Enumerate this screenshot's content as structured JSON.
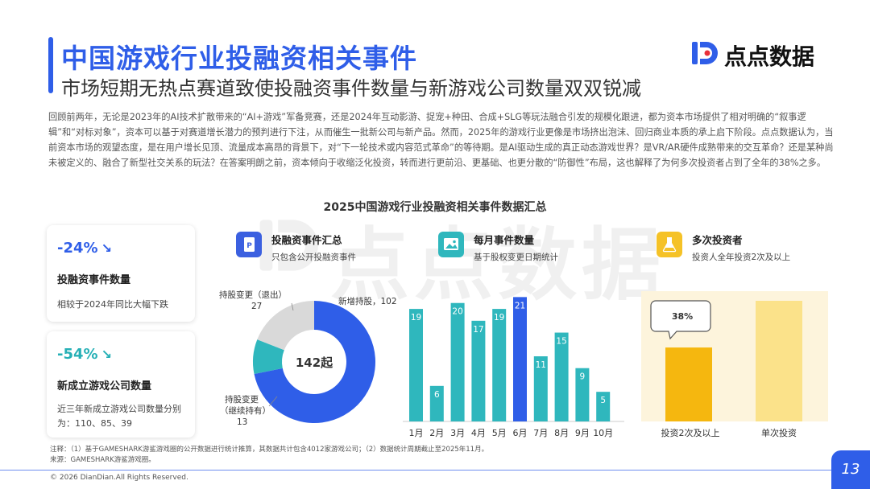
{
  "header": {
    "title": "中国游戏行业投融资相关事件",
    "subtitle": "市场短期无热点赛道致使投融资事件数量与新游戏公司数量双双锐减",
    "logo_text": "点点数据",
    "accent": "#2f5ee8"
  },
  "intro": "回顾前两年，无论是2023年的AI技术扩散带来的“AI+游戏”军备竞赛，还是2024年互动影游、捉宠+种田、合成+SLG等玩法融合引发的规模化跟进，都为资本市场提供了相对明确的“叙事逻辑”和“对标对象”，资本可以基于对赛道增长潜力的预判进行下注，从而催生一批新公司与新产品。然而，2025年的游戏行业更像是市场挤出泡沫、回归商业本质的承上启下阶段。点点数据认为，当前资本市场的观望态度，是在用户增长见顶、流量成本高昂的背景下，对“下一轮技术或内容范式革命”的等待期。是AI驱动生成的真正动态游戏世界？是VR/AR硬件成熟带来的交互革命？还是某种尚未被定义的、融合了新型社交关系的玩法？在答案明朗之前，资本倾向于收缩泛化投资，转而进行更前沿、更基础、也更分散的“防御性”布局，这也解释了为何多次投资者占到了全年的38%之多。",
  "watermark": "点点数据",
  "section_title": "2025中国游戏行业投融资相关事件数据汇总",
  "stats": [
    {
      "value": "-24%",
      "arrow": "↘",
      "label": "投融资事件数量",
      "desc": "相较于2024年同比大幅下跌"
    },
    {
      "value": "-54%",
      "arrow": "↘",
      "label": "新成立游戏公司数量",
      "desc": "近三年新成立游戏公司数量分别为：110、85、39"
    }
  ],
  "panels": [
    {
      "title": "投融资事件汇总",
      "sub": "只包含公开投融资事件",
      "icon": "document-icon"
    },
    {
      "title": "每月事件数量",
      "sub": "基于股权变更日期统计",
      "icon": "image-icon"
    },
    {
      "title": "多次投资者",
      "sub": "投资人全年投资2次及以上",
      "icon": "flask-icon"
    }
  ],
  "chart_data": [
    {
      "type": "pie",
      "center_label": "142起",
      "slices": [
        {
          "name": "新增持股",
          "value": 102,
          "label": "新增持股，102",
          "color": "#2f5ee8"
        },
        {
          "name": "持股变更（继续持有）",
          "value": 13,
          "label_lines": [
            "持股变更",
            "（继续持有）",
            "13"
          ],
          "color": "#2fb7bd"
        },
        {
          "name": "持股变更（退出）",
          "value": 27,
          "label_lines": [
            "持股变更（退出）",
            "27"
          ],
          "color": "#d9d9d9"
        }
      ]
    },
    {
      "type": "bar",
      "categories": [
        "1月",
        "2月",
        "3月",
        "4月",
        "5月",
        "6月",
        "7月",
        "8月",
        "9月",
        "10月"
      ],
      "values": [
        19,
        6,
        20,
        17,
        19,
        21,
        11,
        15,
        9,
        5
      ],
      "highlight_index": 5,
      "color": "#2fb7bd",
      "highlight_color": "#2f5ee8",
      "ylim": [
        0,
        22
      ]
    },
    {
      "type": "bar",
      "categories": [
        "投资2次及以上",
        "单次投资"
      ],
      "values": [
        38,
        62
      ],
      "callout": "38%",
      "colors": [
        "#f5b70f",
        "#fbe28a"
      ],
      "ylim": [
        0,
        100
      ]
    }
  ],
  "notes": [
    "注释：（1）基于GAMESHARK游鲨游戏圈的公开数据进行统计推算，其数据共计包含4012家游戏公司；（2）数据统计周期截止至2025年11月。",
    "来源：GAMESHARK游鲨游戏圈。"
  ],
  "footer": {
    "copyright": "© 2026 DianDian.All Rights Reserved.",
    "page": "13"
  }
}
